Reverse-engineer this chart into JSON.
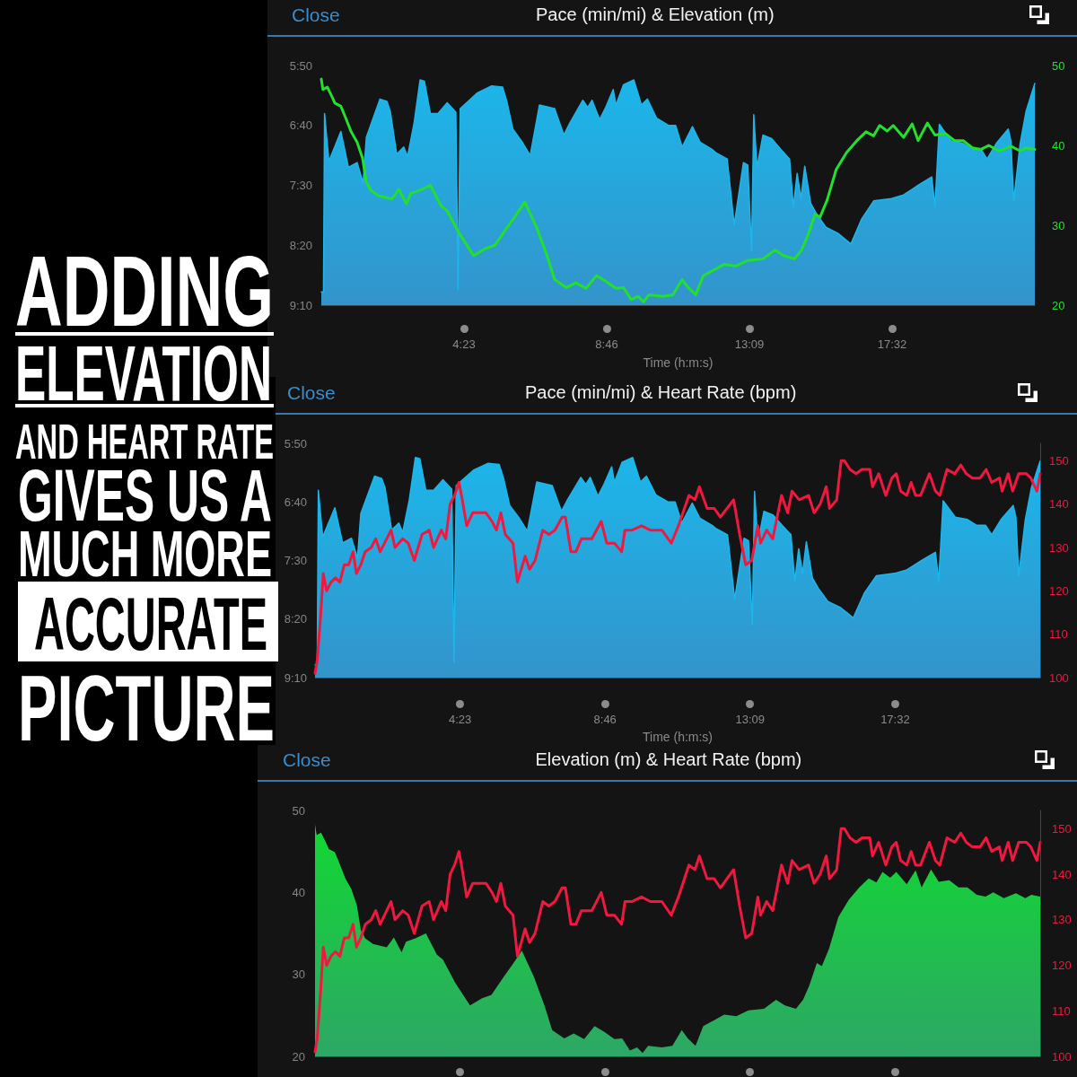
{
  "chart_data": [
    {
      "type": "other",
      "annotations": [
        "ADDING",
        "ELEVATION",
        "AND HEART RATE",
        "GIVES US A",
        "MUCH MORE",
        "ACCURATE",
        "PICTURE"
      ]
    },
    {
      "type": "line",
      "title": "Pace (min/mi) & Elevation (m)",
      "xlabel": "Time (h:m:s)",
      "annotations": [
        "Close"
      ],
      "xlim": [
        0,
        1315
      ],
      "xticks": [
        {
          "value": 263,
          "label": "4:23"
        },
        {
          "value": 526,
          "label": "8:46"
        },
        {
          "value": 789,
          "label": "13:09"
        },
        {
          "value": 1052,
          "label": "17:32"
        }
      ],
      "ylim": [
        550,
        350
      ],
      "yticks": [
        {
          "value": 350,
          "label": "5:50"
        },
        {
          "value": 400,
          "label": "6:40"
        },
        {
          "value": 450,
          "label": "7:30"
        },
        {
          "value": 500,
          "label": "8:20"
        },
        {
          "value": 550,
          "label": "9:10"
        }
      ],
      "y2lim": [
        20,
        50
      ],
      "y2ticks": [
        20,
        30,
        40,
        50
      ],
      "series": [
        {
          "color": "#1cb6ea",
          "x": [
            0,
            4,
            6,
            14,
            36,
            50,
            66,
            77,
            83,
            108,
            121,
            127,
            139,
            152,
            159,
            171,
            182,
            190,
            201,
            215,
            232,
            248,
            252,
            256,
            287,
            314,
            334,
            342,
            353,
            369,
            385,
            402,
            430,
            447,
            458,
            482,
            491,
            499,
            513,
            524,
            538,
            543,
            557,
            576,
            590,
            601,
            618,
            640,
            653,
            665,
            684,
            698,
            720,
            728,
            748,
            761,
            778,
            786,
            793,
            797,
            803,
            814,
            830,
            847,
            863,
            870,
            877,
            884,
            891,
            902,
            913,
            930,
            952,
            976,
            996,
            1018,
            1051,
            1073,
            1100,
            1125,
            1131,
            1139,
            1161,
            1183,
            1200,
            1216,
            1227,
            1244,
            1266,
            1271,
            1276,
            1288,
            1299,
            1315
          ],
          "values": [
            539,
            539,
            390,
            430,
            405,
            435,
            431,
            448,
            410,
            378,
            380,
            388,
            424,
            418,
            426,
            398,
            362,
            363,
            390,
            390,
            381,
            389,
            537,
            386,
            373,
            367,
            368,
            380,
            403,
            413,
            425,
            383,
            386,
            408,
            398,
            379,
            385,
            379,
            395,
            385,
            370,
            383,
            366,
            362,
            383,
            378,
            394,
            400,
            400,
            418,
            401,
            414,
            420,
            423,
            428,
            483,
            431,
            433,
            505,
            391,
            435,
            408,
            411,
            420,
            428,
            468,
            440,
            461,
            434,
            465,
            474,
            485,
            490,
            499,
            478,
            463,
            461,
            458,
            450,
            443,
            468,
            399,
            413,
            415,
            420,
            420,
            428,
            415,
            403,
            413,
            463,
            415,
            388,
            365
          ],
          "lower": [
            539,
            539,
            390,
            430,
            405,
            435,
            431,
            448,
            410,
            378,
            380,
            388,
            424,
            418,
            426,
            398,
            362,
            363,
            390,
            390,
            381,
            389,
            537,
            386,
            373,
            367,
            368,
            380,
            403,
            413,
            425,
            383,
            386,
            408,
            398,
            379,
            385,
            379,
            395,
            385,
            370,
            383,
            366,
            362,
            383,
            378,
            394,
            400,
            400,
            418,
            401,
            414,
            420,
            423,
            428,
            483,
            431,
            433,
            505,
            391,
            435,
            408,
            411,
            420,
            428,
            468,
            440,
            461,
            434,
            465,
            474,
            485,
            490,
            499,
            478,
            463,
            461,
            458,
            450,
            443,
            468,
            399,
            413,
            415,
            420,
            420,
            428,
            415,
            403,
            413,
            463,
            415,
            388,
            365
          ],
          "upper": [
            550,
            550,
            550,
            550,
            550,
            550,
            550,
            550,
            550,
            550,
            550,
            550,
            550,
            550,
            550,
            550,
            550,
            550,
            550,
            550,
            550,
            550,
            550,
            550,
            550,
            550,
            550,
            550,
            550,
            550,
            550,
            550,
            550,
            550,
            550,
            550,
            550,
            550,
            550,
            550,
            550,
            550,
            550,
            550,
            550,
            550,
            550,
            550,
            550,
            550,
            550,
            550,
            550,
            550,
            550,
            550,
            550,
            550,
            550,
            550,
            550,
            550,
            550,
            550,
            550,
            550,
            550,
            550,
            550,
            550,
            550,
            550,
            550,
            550,
            550,
            550,
            550,
            550,
            550,
            550,
            550,
            550,
            550,
            550,
            550,
            550,
            550,
            550,
            550,
            550,
            550,
            550,
            550,
            550
          ]
        },
        {
          "axis": "y2",
          "color": "#22e02c",
          "x": [
            0,
            3,
            11,
            19,
            25,
            36,
            44,
            55,
            66,
            76,
            83,
            91,
            105,
            130,
            143,
            157,
            165,
            182,
            201,
            221,
            232,
            254,
            281,
            303,
            320,
            342,
            358,
            375,
            397,
            416,
            430,
            452,
            469,
            488,
            507,
            524,
            543,
            557,
            571,
            584,
            594,
            604,
            629,
            648,
            665,
            676,
            690,
            704,
            726,
            742,
            764,
            786,
            814,
            836,
            852,
            872,
            885,
            896,
            910,
            919,
            932,
            949,
            968,
            987,
            1004,
            1018,
            1029,
            1043,
            1054,
            1073,
            1089,
            1100,
            1117,
            1131,
            1150,
            1167,
            1183,
            1200,
            1216,
            1230,
            1249,
            1271,
            1288,
            1299,
            1315
          ],
          "values": [
            48.3,
            47.0,
            47.3,
            46.2,
            45.3,
            44.9,
            43.6,
            41.7,
            40.4,
            38.4,
            35.4,
            34.4,
            33.7,
            33.3,
            34.5,
            32.7,
            34.0,
            34.4,
            35.0,
            32.4,
            31.8,
            29.0,
            26.2,
            27.1,
            27.5,
            29.7,
            31.2,
            32.9,
            29.7,
            26.2,
            23.2,
            22.2,
            22.8,
            22.1,
            23.7,
            23.0,
            22.1,
            22.2,
            20.7,
            21.1,
            20.4,
            21.3,
            21.1,
            21.3,
            23.2,
            22.2,
            21.3,
            23.7,
            24.5,
            25.1,
            24.9,
            25.6,
            25.8,
            26.9,
            26.2,
            25.8,
            26.9,
            28.6,
            31.4,
            31.0,
            33.1,
            37.0,
            39.1,
            40.6,
            41.7,
            41.2,
            42.5,
            41.8,
            42.5,
            41.0,
            42.7,
            40.6,
            42.8,
            41.3,
            41.5,
            40.6,
            40.6,
            39.7,
            39.5,
            40.0,
            39.3,
            39.9,
            39.3,
            39.7,
            39.5
          ]
        }
      ]
    },
    {
      "type": "line",
      "title": "Pace (min/mi) & Heart Rate (bpm)",
      "xlabel": "Time (h:m:s)",
      "annotations": [
        "Close"
      ],
      "xlim": [
        0,
        1315
      ],
      "xticks": [
        {
          "value": 263,
          "label": "4:23"
        },
        {
          "value": 526,
          "label": "8:46"
        },
        {
          "value": 789,
          "label": "13:09"
        },
        {
          "value": 1052,
          "label": "17:32"
        }
      ],
      "ylim": [
        550,
        350
      ],
      "yticks": [
        {
          "value": 350,
          "label": "5:50"
        },
        {
          "value": 400,
          "label": "6:40"
        },
        {
          "value": 450,
          "label": "7:30"
        },
        {
          "value": 500,
          "label": "8:20"
        },
        {
          "value": 550,
          "label": "9:10"
        }
      ],
      "y2lim": [
        100,
        154
      ],
      "y2ticks": [
        100,
        110,
        120,
        130,
        140,
        150
      ],
      "series": [
        {
          "color": "#1cb6ea",
          "x": [
            0,
            4,
            6,
            14,
            36,
            50,
            66,
            77,
            83,
            108,
            121,
            127,
            139,
            152,
            159,
            171,
            182,
            190,
            201,
            215,
            232,
            248,
            252,
            256,
            287,
            314,
            334,
            342,
            353,
            369,
            385,
            402,
            430,
            447,
            458,
            482,
            491,
            499,
            513,
            524,
            538,
            543,
            557,
            576,
            590,
            601,
            618,
            640,
            653,
            665,
            684,
            698,
            720,
            728,
            748,
            761,
            778,
            786,
            793,
            797,
            803,
            814,
            830,
            847,
            863,
            870,
            877,
            884,
            891,
            902,
            913,
            930,
            952,
            976,
            996,
            1018,
            1051,
            1073,
            1100,
            1125,
            1131,
            1139,
            1161,
            1183,
            1200,
            1216,
            1227,
            1244,
            1266,
            1271,
            1276,
            1288,
            1299,
            1315
          ],
          "values": [
            539,
            539,
            390,
            430,
            405,
            435,
            431,
            448,
            410,
            378,
            380,
            388,
            424,
            418,
            426,
            398,
            362,
            363,
            390,
            390,
            381,
            389,
            537,
            386,
            373,
            367,
            368,
            380,
            403,
            413,
            425,
            383,
            386,
            408,
            398,
            379,
            385,
            379,
            395,
            385,
            370,
            383,
            366,
            362,
            383,
            378,
            394,
            400,
            400,
            418,
            401,
            414,
            420,
            423,
            428,
            483,
            431,
            433,
            505,
            391,
            435,
            408,
            411,
            420,
            428,
            468,
            440,
            461,
            434,
            465,
            474,
            485,
            490,
            499,
            478,
            463,
            461,
            458,
            450,
            443,
            468,
            399,
            413,
            415,
            420,
            420,
            428,
            415,
            403,
            413,
            463,
            415,
            388,
            365
          ],
          "lower": [
            539,
            539,
            390,
            430,
            405,
            435,
            431,
            448,
            410,
            378,
            380,
            388,
            424,
            418,
            426,
            398,
            362,
            363,
            390,
            390,
            381,
            389,
            537,
            386,
            373,
            367,
            368,
            380,
            403,
            413,
            425,
            383,
            386,
            408,
            398,
            379,
            385,
            379,
            395,
            385,
            370,
            383,
            366,
            362,
            383,
            378,
            394,
            400,
            400,
            418,
            401,
            414,
            420,
            423,
            428,
            483,
            431,
            433,
            505,
            391,
            435,
            408,
            411,
            420,
            428,
            468,
            440,
            461,
            434,
            465,
            474,
            485,
            490,
            499,
            478,
            463,
            461,
            458,
            450,
            443,
            468,
            399,
            413,
            415,
            420,
            420,
            428,
            415,
            403,
            413,
            463,
            415,
            388,
            365
          ],
          "upper": [
            550,
            550,
            550,
            550,
            550,
            550,
            550,
            550,
            550,
            550,
            550,
            550,
            550,
            550,
            550,
            550,
            550,
            550,
            550,
            550,
            550,
            550,
            550,
            550,
            550,
            550,
            550,
            550,
            550,
            550,
            550,
            550,
            550,
            550,
            550,
            550,
            550,
            550,
            550,
            550,
            550,
            550,
            550,
            550,
            550,
            550,
            550,
            550,
            550,
            550,
            550,
            550,
            550,
            550,
            550,
            550,
            550,
            550,
            550,
            550,
            550,
            550,
            550,
            550,
            550,
            550,
            550,
            550,
            550,
            550,
            550,
            550,
            550,
            550,
            550,
            550,
            550,
            550,
            550,
            550,
            550,
            550,
            550,
            550,
            550,
            550,
            550,
            550,
            550,
            550,
            550,
            550,
            550,
            550
          ]
        },
        {
          "axis": "y2",
          "color": "#f0183f",
          "x": [
            0,
            4,
            10,
            15,
            21,
            29,
            37,
            45,
            53,
            61,
            69,
            75,
            83,
            91,
            102,
            110,
            118,
            126,
            138,
            145,
            159,
            169,
            180,
            194,
            207,
            215,
            229,
            237,
            245,
            253,
            261,
            267,
            275,
            286,
            297,
            310,
            321,
            329,
            337,
            345,
            359,
            367,
            381,
            389,
            399,
            413,
            424,
            435,
            448,
            454,
            464,
            473,
            483,
            502,
            519,
            529,
            543,
            556,
            562,
            575,
            592,
            608,
            629,
            646,
            659,
            678,
            689,
            697,
            711,
            724,
            735,
            759,
            770,
            781,
            792,
            803,
            808,
            819,
            830,
            846,
            857,
            865,
            878,
            895,
            905,
            916,
            927,
            933,
            946,
            954,
            960,
            970,
            981,
            992,
            1006,
            1011,
            1022,
            1035,
            1046,
            1054,
            1062,
            1073,
            1081,
            1089,
            1098,
            1114,
            1125,
            1133,
            1146,
            1160,
            1171,
            1181,
            1192,
            1206,
            1217,
            1227,
            1241,
            1246,
            1257,
            1265,
            1276,
            1290,
            1298,
            1309,
            1315
          ],
          "values": [
            101,
            104,
            114,
            124,
            120,
            122,
            123,
            122,
            126,
            126,
            129,
            124,
            126,
            129,
            130,
            132,
            129,
            131,
            134,
            130,
            132,
            131,
            127,
            133,
            134,
            130,
            134,
            132,
            140,
            142,
            145,
            141,
            135,
            138,
            138,
            138,
            136,
            134,
            138,
            133,
            131,
            122,
            128,
            125,
            127,
            134,
            133,
            134,
            137,
            137,
            129,
            129,
            132,
            132,
            136,
            131,
            131,
            129,
            134,
            134,
            135,
            134,
            134,
            131,
            135,
            142,
            141,
            144,
            139,
            139,
            137,
            141,
            133,
            126,
            127,
            135,
            131,
            134,
            132,
            142,
            138,
            143,
            141,
            142,
            138,
            140,
            144,
            139,
            141,
            150,
            150,
            148,
            147,
            148,
            148,
            144,
            147,
            142,
            146,
            147,
            143,
            142,
            145,
            142,
            142,
            147,
            143,
            142,
            148,
            147,
            149,
            147,
            146,
            146,
            148,
            145,
            146,
            143,
            147,
            143,
            147,
            147,
            146,
            143,
            147
          ]
        }
      ]
    },
    {
      "type": "area",
      "title": "Elevation (m) & Heart Rate (bpm)",
      "annotations": [
        "Close"
      ],
      "tick_labels": "y",
      "xlim": [
        0,
        1315
      ],
      "xticks": [
        {
          "value": 263,
          "label": null
        },
        {
          "value": 526,
          "label": null
        },
        {
          "value": 789,
          "label": null
        },
        {
          "value": 1052,
          "label": null
        }
      ],
      "ylim": [
        20,
        50
      ],
      "yticks": [
        20,
        30,
        40,
        50
      ],
      "y2lim": [
        100,
        154
      ],
      "y2ticks": [
        100,
        110,
        120,
        130,
        140,
        150
      ],
      "series": [
        {
          "color": "#12d832",
          "x": [
            0,
            3,
            11,
            19,
            25,
            36,
            44,
            55,
            66,
            76,
            83,
            91,
            105,
            130,
            143,
            157,
            165,
            182,
            201,
            221,
            232,
            254,
            281,
            303,
            320,
            342,
            358,
            375,
            397,
            416,
            430,
            452,
            469,
            488,
            507,
            524,
            543,
            557,
            571,
            584,
            594,
            604,
            629,
            648,
            665,
            676,
            690,
            704,
            726,
            742,
            764,
            786,
            814,
            836,
            852,
            872,
            885,
            896,
            910,
            919,
            932,
            949,
            968,
            987,
            1004,
            1018,
            1029,
            1043,
            1054,
            1073,
            1089,
            1100,
            1117,
            1131,
            1150,
            1167,
            1183,
            1200,
            1216,
            1230,
            1249,
            1271,
            1288,
            1299,
            1315
          ],
          "values": [
            48.3,
            47.0,
            47.3,
            46.2,
            45.3,
            44.9,
            43.6,
            41.7,
            40.4,
            38.4,
            35.4,
            34.4,
            33.7,
            33.3,
            34.5,
            32.7,
            34.0,
            34.4,
            35.0,
            32.4,
            31.8,
            29.0,
            26.2,
            27.1,
            27.5,
            29.7,
            31.2,
            32.9,
            29.7,
            26.2,
            23.2,
            22.2,
            22.8,
            22.1,
            23.7,
            23.0,
            22.1,
            22.2,
            20.7,
            21.1,
            20.4,
            21.3,
            21.1,
            21.3,
            23.2,
            22.2,
            21.3,
            23.7,
            24.5,
            25.1,
            24.9,
            25.6,
            25.8,
            26.9,
            26.2,
            25.8,
            26.9,
            28.6,
            31.4,
            31.0,
            33.1,
            37.0,
            39.1,
            40.6,
            41.7,
            41.2,
            42.5,
            41.8,
            42.5,
            41.0,
            42.7,
            40.6,
            42.8,
            41.3,
            41.5,
            40.6,
            40.6,
            39.7,
            39.5,
            40.0,
            39.3,
            39.9,
            39.3,
            39.7,
            39.5
          ]
        },
        {
          "type": "line",
          "axis": "y2",
          "color": "#f0183f",
          "x": [
            0,
            4,
            10,
            15,
            21,
            29,
            37,
            45,
            53,
            61,
            69,
            75,
            83,
            91,
            102,
            110,
            118,
            126,
            138,
            145,
            159,
            169,
            180,
            194,
            207,
            215,
            229,
            237,
            245,
            253,
            261,
            267,
            275,
            286,
            297,
            310,
            321,
            329,
            337,
            345,
            359,
            367,
            381,
            389,
            399,
            413,
            424,
            435,
            448,
            454,
            464,
            473,
            483,
            502,
            519,
            529,
            543,
            556,
            562,
            575,
            592,
            608,
            629,
            646,
            659,
            678,
            689,
            697,
            711,
            724,
            735,
            759,
            770,
            781,
            792,
            803,
            808,
            819,
            830,
            846,
            857,
            865,
            878,
            895,
            905,
            916,
            927,
            933,
            946,
            954,
            960,
            970,
            981,
            992,
            1006,
            1011,
            1022,
            1035,
            1046,
            1054,
            1062,
            1073,
            1081,
            1089,
            1098,
            1114,
            1125,
            1133,
            1146,
            1160,
            1171,
            1181,
            1192,
            1206,
            1217,
            1227,
            1241,
            1246,
            1257,
            1265,
            1276,
            1290,
            1298,
            1309,
            1315
          ],
          "values": [
            101,
            104,
            114,
            124,
            120,
            122,
            123,
            122,
            126,
            126,
            129,
            124,
            126,
            129,
            130,
            132,
            129,
            131,
            134,
            130,
            132,
            131,
            127,
            133,
            134,
            130,
            134,
            132,
            140,
            142,
            145,
            141,
            135,
            138,
            138,
            138,
            136,
            134,
            138,
            133,
            131,
            122,
            128,
            125,
            127,
            134,
            133,
            134,
            137,
            137,
            129,
            129,
            132,
            132,
            136,
            131,
            131,
            129,
            134,
            134,
            135,
            134,
            134,
            131,
            135,
            142,
            141,
            144,
            139,
            139,
            137,
            141,
            133,
            126,
            127,
            135,
            131,
            134,
            132,
            142,
            138,
            143,
            141,
            142,
            138,
            140,
            144,
            139,
            141,
            150,
            150,
            148,
            147,
            148,
            148,
            144,
            147,
            142,
            146,
            147,
            143,
            142,
            145,
            142,
            142,
            147,
            143,
            142,
            148,
            147,
            149,
            147,
            146,
            146,
            148,
            145,
            146,
            143,
            147,
            143,
            147,
            147,
            146,
            143,
            147
          ]
        }
      ]
    }
  ]
}
